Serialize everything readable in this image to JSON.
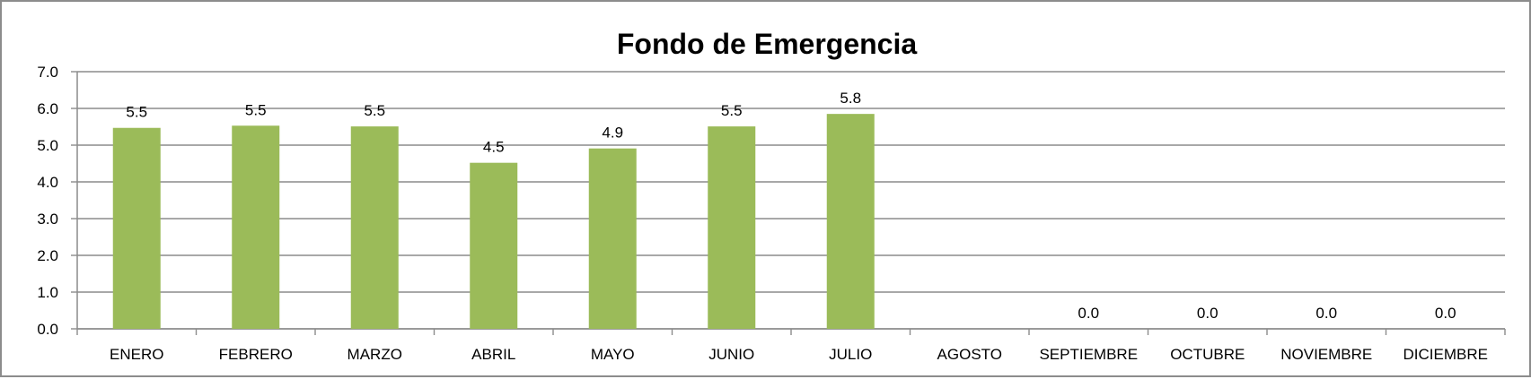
{
  "chart_data": {
    "type": "bar",
    "title": "Fondo de Emergencia",
    "xlabel": "",
    "ylabel": "",
    "categories": [
      "ENERO",
      "FEBRERO",
      "MARZO",
      "ABRIL",
      "MAYO",
      "JUNIO",
      "JULIO",
      "AGOSTO",
      "SEPTIEMBRE",
      "OCTUBRE",
      "NOVIEMBRE",
      "DICIEMBRE"
    ],
    "values": [
      5.47,
      5.53,
      5.51,
      4.52,
      4.91,
      5.51,
      5.85,
      null,
      0.0,
      0.0,
      0.0,
      0.0
    ],
    "data_labels": [
      "5.5",
      "5.5",
      "5.5",
      "4.5",
      "4.9",
      "5.5",
      "5.8",
      "",
      "0.0",
      "0.0",
      "0.0",
      "0.0"
    ],
    "y_ticks": [
      "0.0",
      "1.0",
      "2.0",
      "3.0",
      "4.0",
      "5.0",
      "6.0",
      "7.0"
    ],
    "ylim": [
      0,
      7
    ],
    "grid": true,
    "legend": "none",
    "colors": {
      "bar": "#9bbb59",
      "grid": "#8c8c8c",
      "axis": "#8c8c8c",
      "text": "#000000"
    }
  }
}
